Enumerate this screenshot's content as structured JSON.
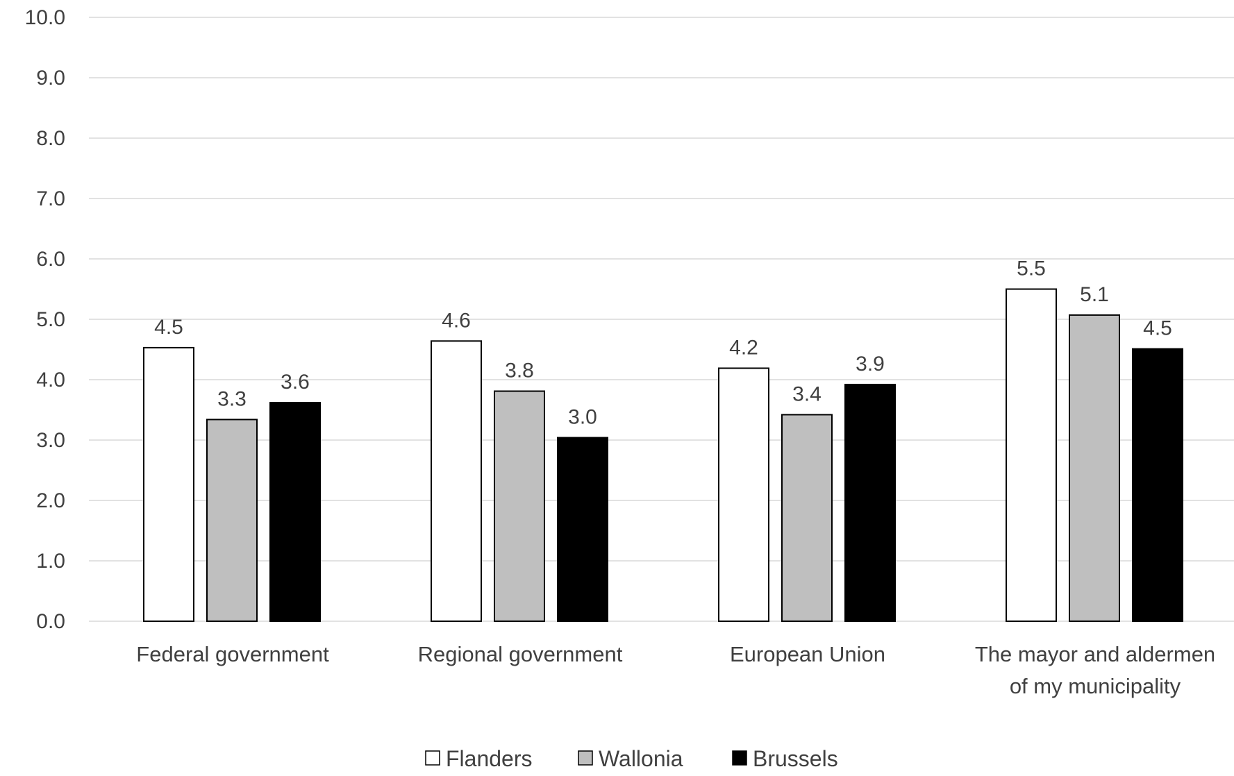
{
  "chart_data": {
    "type": "bar",
    "title": "",
    "xlabel": "",
    "ylabel": "",
    "ylim": [
      0,
      10
    ],
    "ytick_step": 1,
    "ytick_labels": [
      "0.0",
      "1.0",
      "2.0",
      "3.0",
      "4.0",
      "5.0",
      "6.0",
      "7.0",
      "8.0",
      "9.0",
      "10.0"
    ],
    "grid": true,
    "legend_position": "bottom",
    "categories": [
      [
        "Federal government"
      ],
      [
        "Regional government"
      ],
      [
        "European Union"
      ],
      [
        "The mayor and aldermen",
        "of my municipality"
      ]
    ],
    "series": [
      {
        "name": "Flanders",
        "color": "#ffffff",
        "values": [
          4.53,
          4.64,
          4.19,
          5.5
        ],
        "labels": [
          "4.5",
          "4.6",
          "4.2",
          "5.5"
        ]
      },
      {
        "name": "Wallonia",
        "color": "#bfbfbf",
        "values": [
          3.34,
          3.81,
          3.42,
          5.07
        ],
        "labels": [
          "3.3",
          "3.8",
          "3.4",
          "5.1"
        ]
      },
      {
        "name": "Brussels",
        "color": "#000000",
        "values": [
          3.62,
          3.04,
          3.92,
          4.51
        ],
        "labels": [
          "3.6",
          "3.0",
          "3.9",
          "4.5"
        ]
      }
    ]
  }
}
